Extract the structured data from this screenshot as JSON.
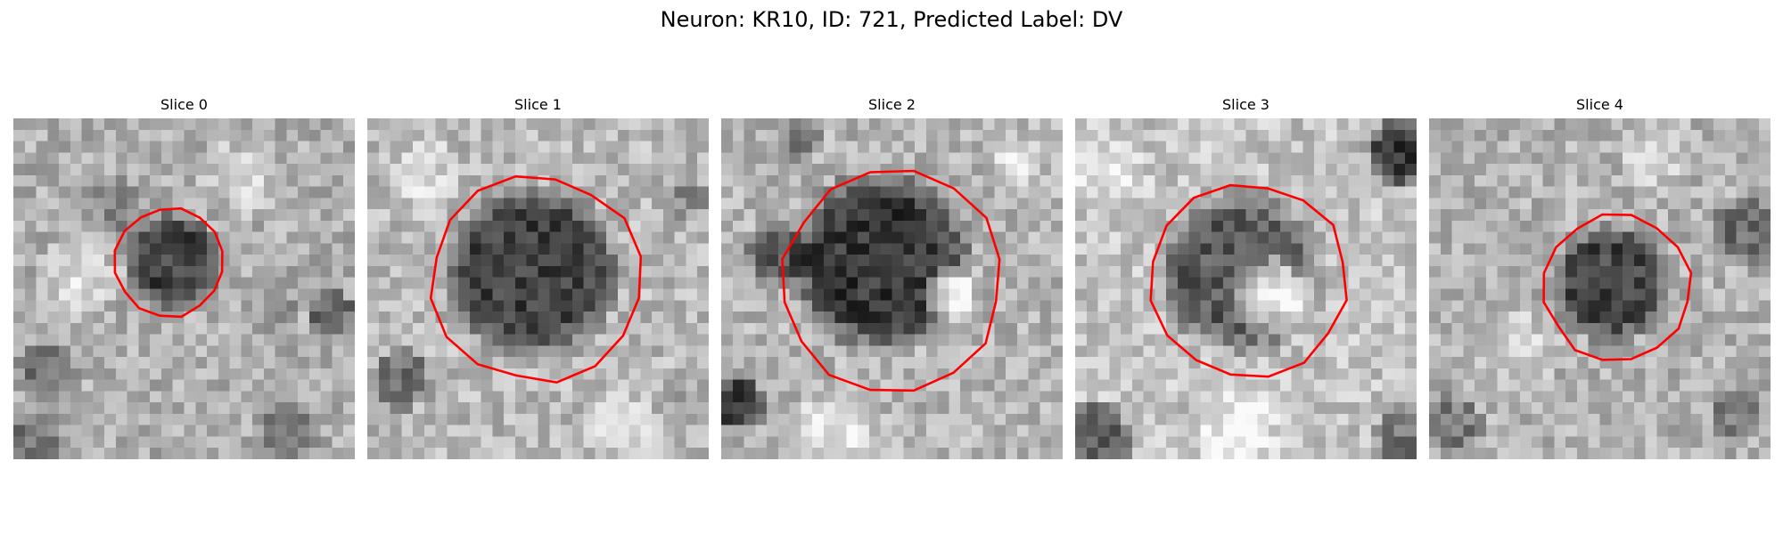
{
  "figure": {
    "title": "Neuron: KR10, ID: 721, Predicted Label: DV"
  },
  "panels": [
    {
      "title": "Slice 0"
    },
    {
      "title": "Slice 1"
    },
    {
      "title": "Slice 2"
    },
    {
      "title": "Slice 3"
    },
    {
      "title": "Slice 4"
    }
  ],
  "colors": {
    "contour": "#ff0000",
    "colormap": "grayscale"
  }
}
